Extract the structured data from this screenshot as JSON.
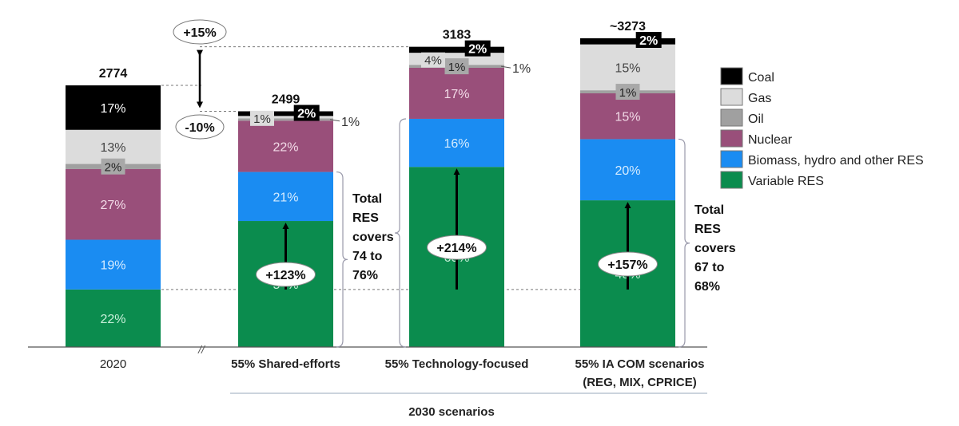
{
  "chart_data": {
    "type": "bar",
    "stacked": true,
    "title": "",
    "xlabel": "",
    "ylabel": "",
    "grid": false,
    "legend_position": "right",
    "categories": [
      "2020",
      "55% Shared-efforts",
      "55% Technology-focused",
      "55% IA COM scenarios (REG, MIX, CPRICE)"
    ],
    "category_lines": [
      [
        "2020"
      ],
      [
        "55% Shared-efforts"
      ],
      [
        "55% Technology-focused"
      ],
      [
        "55% IA COM scenarios",
        "(REG, MIX, CPRICE)"
      ]
    ],
    "totals": [
      2774,
      2499,
      3183,
      3273
    ],
    "total_labels": [
      "2774",
      "2499",
      "3183",
      "~3273"
    ],
    "group_label": "2030 scenarios",
    "series": [
      {
        "name": "Variable RES",
        "color": "#0b8c4e",
        "text_color": "#c9f0da",
        "values": [
          22,
          54,
          60,
          48
        ],
        "labels": [
          "22%",
          "54%",
          "60%",
          "48%"
        ]
      },
      {
        "name": "Biomass, hydro and other RES",
        "color": "#1a8cf2",
        "text_color": "#d6ecff",
        "values": [
          19,
          21,
          16,
          20
        ],
        "labels": [
          "19%",
          "21%",
          "16%",
          "20%"
        ]
      },
      {
        "name": "Nuclear",
        "color": "#994f7a",
        "text_color": "#f3dbe8",
        "values": [
          27,
          22,
          17,
          15
        ],
        "labels": [
          "27%",
          "22%",
          "17%",
          "15%"
        ]
      },
      {
        "name": "Oil",
        "color": "#a0a0a0",
        "text_color": "#222222",
        "values": [
          2,
          1,
          1,
          1
        ],
        "labels": [
          "2%",
          "",
          "1%",
          "1%"
        ]
      },
      {
        "name": "Gas",
        "color": "#dcdcdc",
        "text_color": "#444444",
        "values": [
          13,
          1,
          4,
          15
        ],
        "labels": [
          "13%",
          "1%",
          "4%",
          "15%"
        ]
      },
      {
        "name": "Coal",
        "color": "#000000",
        "text_color": "#ffffff",
        "values": [
          17,
          2,
          2,
          2
        ],
        "labels": [
          "17%",
          "2%",
          "2%",
          "2%"
        ]
      }
    ],
    "side_labels": [
      {
        "category": 1,
        "text": "1%"
      },
      {
        "category": 2,
        "text": "1%"
      }
    ],
    "legend_order": [
      "Coal",
      "Gas",
      "Oil",
      "Nuclear",
      "Biomass, hydro and other RES",
      "Variable RES"
    ],
    "annotations": {
      "change_vs_2020_up": "+15%",
      "change_vs_2020_down": "-10%",
      "vres_growth": [
        {
          "category": 1,
          "text": "+123%"
        },
        {
          "category": 2,
          "text": "+214%"
        },
        {
          "category": 3,
          "text": "+157%"
        }
      ],
      "res_braces": [
        {
          "category": 1,
          "lines": [
            "Total",
            "RES",
            "covers",
            "74 to",
            "76%"
          ]
        },
        {
          "category": 3,
          "lines": [
            "Total",
            "RES",
            "covers",
            "67 to",
            "68%"
          ]
        }
      ],
      "axis_break": "//"
    }
  }
}
